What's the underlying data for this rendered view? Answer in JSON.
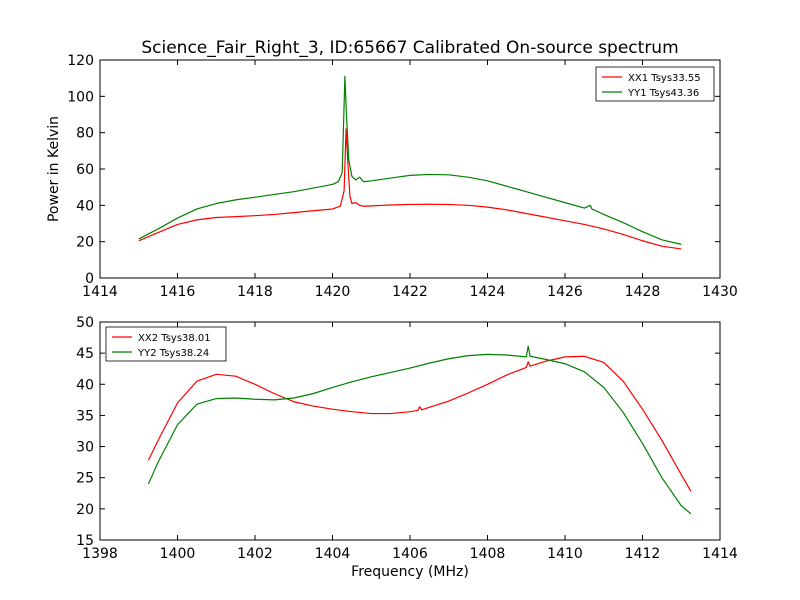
{
  "title": "Science_Fair_Right_3, ID:65667 Calibrated On-source spectrum",
  "colors": {
    "red": "#ff0000",
    "green": "#007f00"
  },
  "chart_data": [
    {
      "type": "line",
      "ylabel": "Power in Kelvin",
      "xlabel": "",
      "xlim": [
        1414,
        1430
      ],
      "ylim": [
        0,
        120
      ],
      "xticks": [
        "1414",
        "1416",
        "1418",
        "1420",
        "1422",
        "1424",
        "1426",
        "1428",
        "1430"
      ],
      "yticks": [
        "0",
        "20",
        "40",
        "60",
        "80",
        "100",
        "120"
      ],
      "legend_position": "top-right",
      "series": [
        {
          "name": "XX1 Tsys33.55",
          "color": "red",
          "x": [
            1415,
            1415.5,
            1416,
            1416.5,
            1417,
            1417.5,
            1418,
            1418.5,
            1419,
            1419.5,
            1420,
            1420.2,
            1420.3,
            1420.35,
            1420.4,
            1420.45,
            1420.5,
            1420.6,
            1420.7,
            1420.8,
            1421,
            1421.5,
            1422,
            1422.5,
            1423,
            1423.5,
            1424,
            1424.5,
            1425,
            1425.5,
            1426,
            1426.5,
            1427,
            1427.5,
            1428,
            1428.5,
            1429
          ],
          "y": [
            20.5,
            25,
            29.5,
            32,
            33.3,
            33.8,
            34.3,
            35,
            36,
            37,
            38,
            39.5,
            48,
            82,
            62,
            45,
            41,
            41.5,
            40,
            39.5,
            39.7,
            40.2,
            40.5,
            40.6,
            40.5,
            40,
            39,
            37.5,
            35.5,
            33.5,
            31.5,
            29.5,
            27,
            24,
            20.5,
            17.5,
            16
          ]
        },
        {
          "name": "YY1 Tsys43.36",
          "color": "green",
          "x": [
            1415,
            1415.5,
            1416,
            1416.5,
            1417,
            1417.5,
            1418,
            1418.5,
            1419,
            1419.5,
            1420,
            1420.15,
            1420.25,
            1420.32,
            1420.36,
            1420.42,
            1420.5,
            1420.6,
            1420.7,
            1420.8,
            1421,
            1421.5,
            1422,
            1422.5,
            1423,
            1423.5,
            1424,
            1424.5,
            1425,
            1425.5,
            1426,
            1426.5,
            1426.65,
            1426.7,
            1426.75,
            1427,
            1427.5,
            1428,
            1428.5,
            1429
          ],
          "y": [
            21.5,
            27,
            33,
            38,
            41,
            43,
            44.5,
            46,
            47.5,
            49.5,
            51.5,
            53,
            58,
            111,
            90,
            65,
            56,
            54,
            55.5,
            53,
            53.5,
            55,
            56.5,
            57,
            56.8,
            55.5,
            53.5,
            50.5,
            47.5,
            44.5,
            41.5,
            38.5,
            40,
            37.8,
            37.5,
            35,
            30.5,
            25.5,
            21,
            18.5
          ]
        }
      ]
    },
    {
      "type": "line",
      "xlabel": "Frequency (MHz)",
      "ylabel": "",
      "xlim": [
        1398,
        1414
      ],
      "ylim": [
        15,
        50
      ],
      "xticks": [
        "1398",
        "1400",
        "1402",
        "1404",
        "1406",
        "1408",
        "1410",
        "1412",
        "1414"
      ],
      "yticks": [
        "15",
        "20",
        "25",
        "30",
        "35",
        "40",
        "45",
        "50"
      ],
      "legend_position": "top-left",
      "series": [
        {
          "name": "XX2 Tsys38.01",
          "color": "red",
          "x": [
            1399.25,
            1399.5,
            1400,
            1400.5,
            1401,
            1401.5,
            1402,
            1402.5,
            1403,
            1403.5,
            1404,
            1404.5,
            1405,
            1405.5,
            1406,
            1406.2,
            1406.25,
            1406.3,
            1406.5,
            1407,
            1407.5,
            1408,
            1408.5,
            1409,
            1409.05,
            1409.1,
            1409.5,
            1410,
            1410.5,
            1411,
            1411.5,
            1412,
            1412.5,
            1413,
            1413.25
          ],
          "y": [
            27.8,
            31,
            37,
            40.5,
            41.6,
            41.3,
            40,
            38.5,
            37.2,
            36.5,
            36,
            35.6,
            35.3,
            35.3,
            35.6,
            35.8,
            36.4,
            35.9,
            36.3,
            37.3,
            38.6,
            40,
            41.5,
            42.7,
            43.6,
            42.9,
            43.7,
            44.4,
            44.5,
            43.5,
            40.5,
            36,
            31,
            25.5,
            22.8
          ]
        },
        {
          "name": "YY2 Tsys38.24",
          "color": "green",
          "x": [
            1399.25,
            1399.5,
            1400,
            1400.5,
            1401,
            1401.5,
            1402,
            1402.5,
            1403,
            1403.5,
            1404,
            1404.5,
            1405,
            1405.5,
            1406,
            1406.5,
            1407,
            1407.5,
            1408,
            1408.5,
            1409,
            1409.05,
            1409.1,
            1409.5,
            1410,
            1410.5,
            1411,
            1411.5,
            1412,
            1412.5,
            1413,
            1413.25
          ],
          "y": [
            24,
            27.5,
            33.5,
            36.8,
            37.7,
            37.8,
            37.6,
            37.5,
            37.8,
            38.5,
            39.5,
            40.4,
            41.2,
            41.9,
            42.6,
            43.4,
            44.1,
            44.6,
            44.8,
            44.7,
            44.4,
            46.1,
            44.5,
            44,
            43.3,
            42,
            39.5,
            35.5,
            30.5,
            25,
            20.5,
            19.2
          ]
        }
      ]
    }
  ]
}
